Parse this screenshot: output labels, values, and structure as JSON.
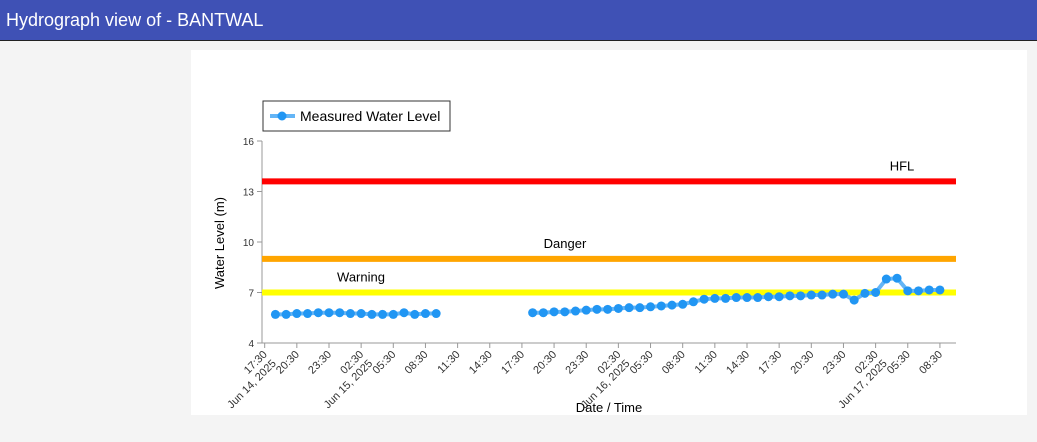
{
  "header": {
    "title": "Hydrograph view of - BANTWAL"
  },
  "chart_data": {
    "type": "line",
    "legend": "top-left",
    "ylabel": "Water Level (m)",
    "xlabel": "Date / Time",
    "ylim": [
      4,
      16
    ],
    "yticks": [
      4,
      7,
      10,
      13,
      16
    ],
    "xlim": [
      "2025-06-14T17:15",
      "2025-06-17T10:00"
    ],
    "xticks": [
      {
        "value": "2025-06-14T17:30",
        "label": "17:30"
      },
      {
        "value": "2025-06-14T20:30",
        "label": "20:30"
      },
      {
        "value": "2025-06-14T23:30",
        "label": "23:30"
      },
      {
        "value": "2025-06-15T02:30",
        "label": "02:30"
      },
      {
        "value": "2025-06-15T05:30",
        "label": "05:30"
      },
      {
        "value": "2025-06-15T08:30",
        "label": "08:30"
      },
      {
        "value": "2025-06-15T11:30",
        "label": "11:30"
      },
      {
        "value": "2025-06-15T14:30",
        "label": "14:30"
      },
      {
        "value": "2025-06-15T17:30",
        "label": "17:30"
      },
      {
        "value": "2025-06-15T20:30",
        "label": "20:30"
      },
      {
        "value": "2025-06-15T23:30",
        "label": "23:30"
      },
      {
        "value": "2025-06-16T02:30",
        "label": "02:30"
      },
      {
        "value": "2025-06-16T05:30",
        "label": "05:30"
      },
      {
        "value": "2025-06-16T08:30",
        "label": "08:30"
      },
      {
        "value": "2025-06-16T11:30",
        "label": "11:30"
      },
      {
        "value": "2025-06-16T14:30",
        "label": "14:30"
      },
      {
        "value": "2025-06-16T17:30",
        "label": "17:30"
      },
      {
        "value": "2025-06-16T20:30",
        "label": "20:30"
      },
      {
        "value": "2025-06-16T23:30",
        "label": "23:30"
      },
      {
        "value": "2025-06-17T02:30",
        "label": "02:30"
      },
      {
        "value": "2025-06-17T05:30",
        "label": "05:30"
      },
      {
        "value": "2025-06-17T08:30",
        "label": "08:30"
      }
    ],
    "xtick_dates": [
      {
        "value": "2025-06-14T17:30",
        "label": "Jun 14, 2025"
      },
      {
        "value": "2025-06-15T02:30",
        "label": "Jun 15, 2025"
      },
      {
        "value": "2025-06-16T02:30",
        "label": "Jun 16, 2025"
      },
      {
        "value": "2025-06-17T02:30",
        "label": "Jun 17, 2025"
      }
    ],
    "thresholds": [
      {
        "name": "HFL",
        "value": 13.6,
        "color": "#ff0000"
      },
      {
        "name": "Danger",
        "value": 9,
        "color": "#ffa500"
      },
      {
        "name": "Warning",
        "value": 7,
        "color": "#ffff00"
      }
    ],
    "x": [
      "2025-06-14T18:30",
      "2025-06-14T19:30",
      "2025-06-14T20:30",
      "2025-06-14T21:30",
      "2025-06-14T22:30",
      "2025-06-14T23:30",
      "2025-06-15T00:30",
      "2025-06-15T01:30",
      "2025-06-15T02:30",
      "2025-06-15T03:30",
      "2025-06-15T04:30",
      "2025-06-15T05:30",
      "2025-06-15T06:30",
      "2025-06-15T07:30",
      "2025-06-15T08:30",
      "2025-06-15T09:30",
      "2025-06-15T13:30",
      "2025-06-15T18:30",
      "2025-06-15T19:30",
      "2025-06-15T20:30",
      "2025-06-15T21:30",
      "2025-06-15T22:30",
      "2025-06-15T23:30",
      "2025-06-16T00:30",
      "2025-06-16T01:30",
      "2025-06-16T02:30",
      "2025-06-16T03:30",
      "2025-06-16T04:30",
      "2025-06-16T05:30",
      "2025-06-16T06:30",
      "2025-06-16T07:30",
      "2025-06-16T08:30",
      "2025-06-16T09:30",
      "2025-06-16T10:30",
      "2025-06-16T11:30",
      "2025-06-16T12:30",
      "2025-06-16T13:30",
      "2025-06-16T14:30",
      "2025-06-16T15:30",
      "2025-06-16T16:30",
      "2025-06-16T17:30",
      "2025-06-16T18:30",
      "2025-06-16T19:30",
      "2025-06-16T20:30",
      "2025-06-16T21:30",
      "2025-06-16T22:30",
      "2025-06-16T23:30",
      "2025-06-17T00:30",
      "2025-06-17T01:30",
      "2025-06-17T02:30",
      "2025-06-17T03:30",
      "2025-06-17T04:30",
      "2025-06-17T05:30",
      "2025-06-17T06:30",
      "2025-06-17T07:30",
      "2025-06-17T08:30"
    ],
    "series": [
      {
        "name": "Measured Water Level",
        "color": "#2196f3",
        "line_color": "#64b5f6",
        "values": [
          5.7,
          5.7,
          5.75,
          5.75,
          5.8,
          5.8,
          5.8,
          5.75,
          5.75,
          5.7,
          5.7,
          5.7,
          5.8,
          5.7,
          5.75,
          5.75,
          null,
          5.8,
          5.8,
          5.85,
          5.85,
          5.9,
          5.95,
          6.0,
          6.0,
          6.05,
          6.1,
          6.1,
          6.15,
          6.2,
          6.25,
          6.3,
          6.45,
          6.6,
          6.65,
          6.65,
          6.7,
          6.7,
          6.7,
          6.75,
          6.75,
          6.8,
          6.8,
          6.85,
          6.85,
          6.9,
          6.9,
          6.55,
          6.95,
          7.0,
          7.8,
          7.85,
          7.1,
          7.1,
          7.15,
          7.15
        ]
      }
    ]
  }
}
